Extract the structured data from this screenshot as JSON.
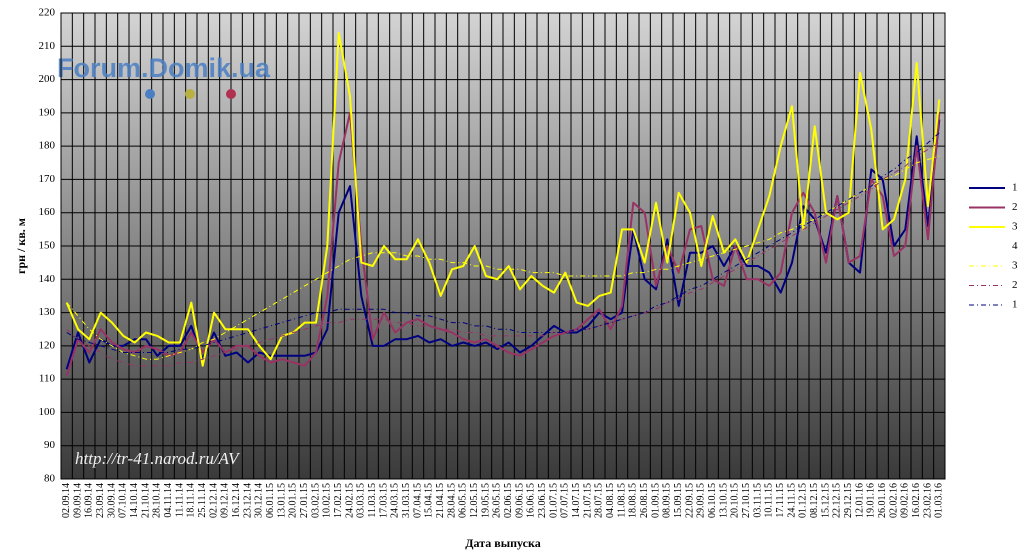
{
  "chart_data": {
    "type": "line",
    "watermark": "Forum.Domik.ua",
    "source_note": "http://tr-41.narod.ru/AV",
    "ylabel": "грн / кв. м",
    "xlabel": "Дата выпуска",
    "ylim": [
      80,
      220
    ],
    "yticks": [
      80,
      90,
      100,
      110,
      120,
      130,
      140,
      150,
      160,
      170,
      180,
      190,
      200,
      210,
      220
    ],
    "grid": true,
    "legend": "right",
    "categories": [
      "02.09.14",
      "09.09.14",
      "16.09.14",
      "23.09.14",
      "30.09.14",
      "07.10.14",
      "14.10.14",
      "21.10.14",
      "28.10.14",
      "04.11.14",
      "11.11.14",
      "18.11.14",
      "25.11.14",
      "02.12.14",
      "09.12.14",
      "16.12.14",
      "23.12.14",
      "30.12.14",
      "06.01.15",
      "13.01.15",
      "20.01.15",
      "27.01.15",
      "03.02.15",
      "10.02.15",
      "17.02.15",
      "24.02.15",
      "03.03.15",
      "11.03.15",
      "17.03.15",
      "24.03.15",
      "31.03.15",
      "07.04.15",
      "15.04.15",
      "21.04.15",
      "28.04.15",
      "06.05.15",
      "12.05.15",
      "19.05.15",
      "26.05.15",
      "02.06.15",
      "09.06.15",
      "16.06.15",
      "23.06.15",
      "01.07.15",
      "07.07.15",
      "14.07.15",
      "21.07.15",
      "28.07.15",
      "04.08.15",
      "11.08.15",
      "18.08.15",
      "26.08.15",
      "01.09.15",
      "08.09.15",
      "15.09.15",
      "22.09.15",
      "29.09.15",
      "06.10.15",
      "13.10.15",
      "20.10.15",
      "27.10.15",
      "03.11.15",
      "10.11.15",
      "17.11.15",
      "24.11.15",
      "01.12.15",
      "08.12.15",
      "15.12.15",
      "22.12.15",
      "29.12.15",
      "12.01.16",
      "19.01.16",
      "26.01.16",
      "02.02.16",
      "09.02.16",
      "16.02.16",
      "23.02.16",
      "01.03.16"
    ],
    "series": [
      {
        "name": "1",
        "color": "#000080",
        "dash": false,
        "values": [
          113,
          124,
          115,
          122,
          120,
          120,
          122,
          122,
          117,
          120,
          120,
          126,
          116,
          124,
          117,
          118,
          115,
          118,
          117,
          117,
          117,
          117,
          118,
          125,
          160,
          168,
          135,
          120,
          120,
          122,
          122,
          123,
          121,
          122,
          120,
          121,
          120,
          121,
          119,
          121,
          118,
          120,
          123,
          126,
          124,
          124,
          126,
          130,
          128,
          130,
          155,
          140,
          137,
          152,
          132,
          148,
          148,
          150,
          144,
          150,
          144,
          144,
          142,
          136,
          145,
          162,
          158,
          148,
          165,
          145,
          142,
          173,
          170,
          150,
          155,
          183,
          156,
          188
        ]
      },
      {
        "name": "2",
        "color": "#993366",
        "dash": false,
        "values": [
          111,
          122,
          118,
          125,
          121,
          119,
          118,
          120,
          119,
          117,
          118,
          124,
          118,
          122,
          118,
          120,
          120,
          117,
          115,
          116,
          115,
          114,
          118,
          135,
          175,
          190,
          150,
          122,
          130,
          124,
          127,
          128,
          126,
          125,
          124,
          122,
          121,
          122,
          120,
          118,
          117,
          119,
          121,
          123,
          124,
          125,
          128,
          131,
          125,
          132,
          163,
          160,
          138,
          150,
          142,
          155,
          156,
          140,
          138,
          150,
          140,
          140,
          138,
          142,
          160,
          166,
          160,
          145,
          165,
          145,
          147,
          170,
          165,
          147,
          150,
          180,
          152,
          190
        ]
      },
      {
        "name": "3",
        "color": "#ffff00",
        "dash": false,
        "values": [
          133,
          125,
          122,
          130,
          127,
          123,
          121,
          124,
          123,
          121,
          121,
          133,
          114,
          130,
          125,
          125,
          125,
          120,
          116,
          123,
          124,
          127,
          127,
          150,
          214,
          195,
          145,
          144,
          150,
          146,
          146,
          152,
          145,
          135,
          143,
          144,
          150,
          141,
          140,
          144,
          137,
          141,
          138,
          136,
          142,
          133,
          132,
          135,
          136,
          155,
          155,
          145,
          163,
          145,
          166,
          160,
          144,
          159,
          148,
          152,
          145,
          155,
          165,
          180,
          192,
          155,
          186,
          160,
          158,
          160,
          202,
          185,
          155,
          158,
          170,
          205,
          162,
          194
        ]
      },
      {
        "name": "4",
        "color": null
      },
      {
        "name": "3",
        "color": "#ffff00",
        "dash": true,
        "values": [
          133,
          129,
          125,
          122,
          120,
          118,
          117,
          116,
          116,
          117,
          118,
          119,
          121,
          122,
          124,
          126,
          128,
          130,
          132,
          134,
          136,
          138,
          140,
          142,
          144,
          146,
          147,
          148,
          148,
          148,
          147,
          147,
          146,
          146,
          145,
          145,
          144,
          144,
          143,
          143,
          143,
          142,
          142,
          142,
          141,
          141,
          141,
          141,
          141,
          141,
          142,
          142,
          143,
          143,
          144,
          145,
          146,
          147,
          148,
          149,
          150,
          151,
          152,
          154,
          155,
          157,
          158,
          160,
          162,
          164,
          166,
          168,
          170,
          171,
          173,
          175,
          176,
          177
        ]
      },
      {
        "name": "2",
        "color": "#993366",
        "dash": true,
        "values": [
          125,
          122,
          120,
          118,
          116,
          115,
          114,
          114,
          114,
          114,
          115,
          115,
          116,
          117,
          118,
          119,
          120,
          121,
          122,
          123,
          124,
          125,
          126,
          127,
          127,
          128,
          128,
          128,
          128,
          127,
          127,
          126,
          126,
          125,
          125,
          124,
          124,
          123,
          123,
          123,
          123,
          123,
          123,
          124,
          124,
          125,
          125,
          126,
          127,
          128,
          129,
          130,
          131,
          133,
          134,
          136,
          137,
          139,
          141,
          143,
          145,
          147,
          149,
          151,
          153,
          155,
          157,
          159,
          161,
          163,
          165,
          167,
          170,
          172,
          174,
          177,
          179,
          181
        ]
      },
      {
        "name": "1",
        "color": "#000080",
        "dash": true,
        "values": [
          124,
          122,
          121,
          120,
          119,
          118,
          118,
          118,
          118,
          118,
          119,
          119,
          120,
          121,
          122,
          123,
          124,
          125,
          126,
          127,
          128,
          129,
          130,
          130,
          131,
          131,
          131,
          131,
          131,
          130,
          130,
          129,
          129,
          128,
          127,
          127,
          126,
          126,
          125,
          125,
          124,
          124,
          124,
          124,
          124,
          125,
          125,
          126,
          127,
          128,
          129,
          130,
          132,
          133,
          135,
          137,
          138,
          140,
          142,
          144,
          146,
          148,
          150,
          152,
          154,
          156,
          158,
          160,
          162,
          164,
          166,
          168,
          171,
          173,
          176,
          178,
          181,
          184
        ]
      }
    ]
  }
}
